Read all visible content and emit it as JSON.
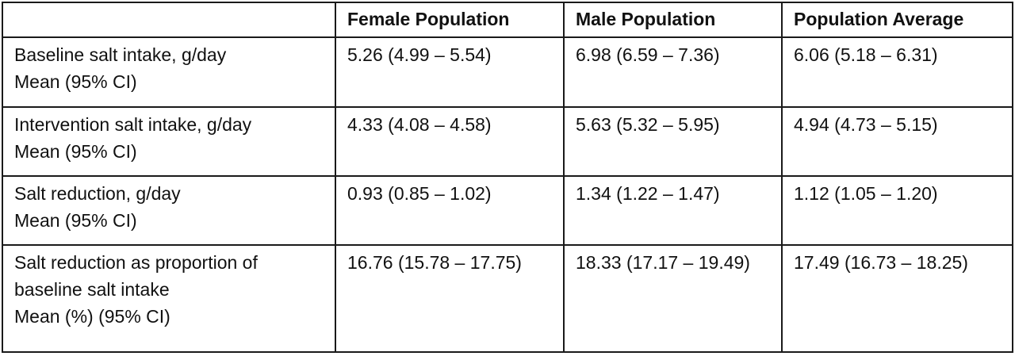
{
  "table": {
    "headers": [
      "",
      "Female Population",
      "Male Population",
      "Population Average"
    ],
    "rows": [
      {
        "label_lines": [
          "Baseline salt intake, g/day",
          "Mean (95% CI)"
        ],
        "female": "5.26 (4.99 – 5.54)",
        "male": "6.98 (6.59 – 7.36)",
        "average": "6.06 (5.18 – 6.31)"
      },
      {
        "label_lines": [
          "Intervention salt intake, g/day",
          "Mean (95% CI)"
        ],
        "female": "4.33 (4.08 – 4.58)",
        "male": "5.63 (5.32 – 5.95)",
        "average": "4.94 (4.73 – 5.15)"
      },
      {
        "label_lines": [
          "Salt reduction, g/day",
          "Mean (95% CI)"
        ],
        "female": "0.93 (0.85 – 1.02)",
        "male": "1.34 (1.22 – 1.47)",
        "average": "1.12 (1.05 – 1.20)"
      },
      {
        "label_lines": [
          "Salt reduction as proportion of",
          "baseline salt intake",
          "Mean (%) (95% CI)"
        ],
        "female": "16.76 (15.78 – 17.75)",
        "male": "18.33 (17.17 – 19.49)",
        "average": "17.49 (16.73 – 18.25)"
      }
    ]
  }
}
